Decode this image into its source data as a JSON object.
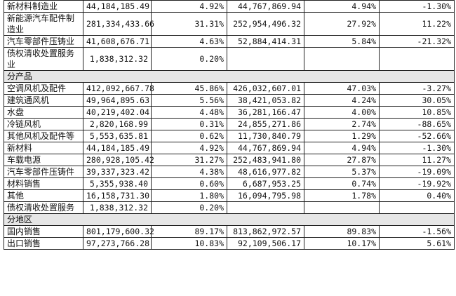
{
  "table": {
    "rows": [
      [
        "新材料制造业",
        "44,184,185.49",
        "4.92%",
        "44,767,869.94",
        "4.94%",
        "-1.30%"
      ],
      [
        "新能源汽车配件制造业",
        "281,334,433.66",
        "31.31%",
        "252,954,496.32",
        "27.92%",
        "11.22%"
      ],
      [
        "汽车零部件压铸业",
        "41,608,676.71",
        "4.63%",
        "52,884,414.31",
        "5.84%",
        "-21.32%"
      ],
      [
        "债权清收处置服务业",
        "1,838,312.32",
        "0.20%"
      ]
    ],
    "groups": [
      {
        "title": "分产品",
        "rows": [
          [
            "空调风机及配件",
            "412,092,667.78",
            "45.86%",
            "426,032,607.01",
            "47.03%",
            "-3.27%"
          ],
          [
            "建筑通风机",
            "49,964,895.63",
            "5.56%",
            "38,421,053.82",
            "4.24%",
            "30.05%"
          ],
          [
            "水盘",
            "40,219,402.04",
            "4.48%",
            "36,281,166.47",
            "4.00%",
            "10.85%"
          ],
          [
            "冷链风机",
            "2,820,168.99",
            "0.31%",
            "24,855,271.86",
            "2.74%",
            "-88.65%"
          ],
          [
            "其他风机及配件等",
            "5,553,635.81",
            "0.62%",
            "11,730,840.79",
            "1.29%",
            "-52.66%"
          ],
          [
            "新材料",
            "44,184,185.49",
            "4.92%",
            "44,767,869.94",
            "4.94%",
            "-1.30%"
          ],
          [
            "车载电源",
            "280,928,105.42",
            "31.27%",
            "252,483,941.80",
            "27.87%",
            "11.27%"
          ],
          [
            "汽车零部件压铸件",
            "39,337,323.42",
            "4.38%",
            "48,616,977.82",
            "5.37%",
            "-19.09%"
          ],
          [
            "材料销售",
            "5,355,938.40",
            "0.60%",
            "6,687,953.25",
            "0.74%",
            "-19.92%"
          ],
          [
            "其他",
            "16,158,731.30",
            "1.80%",
            "16,094,795.98",
            "1.78%",
            "0.40%"
          ],
          [
            "债权清收处置服务",
            "1,838,312.32",
            "0.20%"
          ]
        ]
      },
      {
        "title": "分地区",
        "rows": [
          [
            "国内销售",
            "801,179,600.32",
            "89.17%",
            "813,862,972.57",
            "89.83%",
            "-1.56%"
          ],
          [
            "出口销售",
            "97,273,766.28",
            "10.83%",
            "92,109,506.17",
            "10.17%",
            "5.61%"
          ]
        ]
      }
    ]
  }
}
